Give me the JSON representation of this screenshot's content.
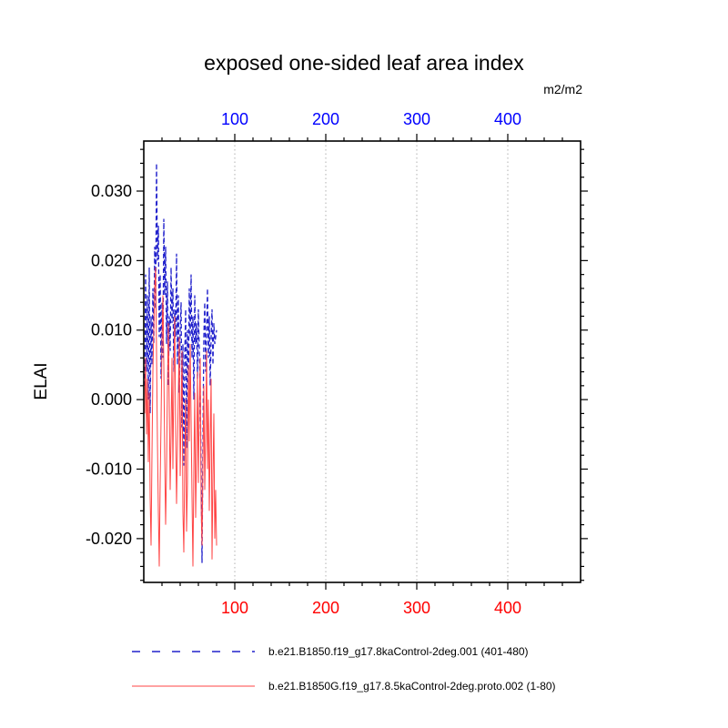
{
  "chart_data": {
    "type": "line",
    "title": "exposed one-sided leaf area index",
    "ylabel": "ELAI",
    "top_axis_unit": "m2/m2",
    "xlim": [
      0,
      480
    ],
    "ylim": [
      -0.0263,
      0.0372
    ],
    "x_major_ticks": [
      100,
      200,
      300,
      400
    ],
    "x_minor_step": 20,
    "y_major_ticks": [
      0.03,
      0.02,
      0.01,
      0.0,
      -0.01,
      -0.02
    ],
    "y_minor_step": 0.002,
    "grid": {
      "vertical_at": [
        100,
        200,
        300,
        400
      ],
      "color": "#b0b0b0"
    },
    "axis_colors": {
      "top": "#0000ff",
      "bottom": "#ff0000",
      "left": "#000000"
    },
    "x_start": 1,
    "x_step": 1,
    "series": [
      {
        "name": "b.e21.B1850.f19_g17.8kaControl-2deg.001 (401-480)",
        "color": "#2222cc",
        "style": "dashed",
        "values": [
          0.002,
          0.018,
          0.004,
          0.015,
          0.0,
          0.019,
          -0.002,
          0.012,
          0.005,
          0.016,
          0.008,
          0.022,
          0.013,
          0.034,
          0.02,
          0.025,
          0.009,
          0.018,
          0.003,
          0.014,
          0.006,
          0.026,
          0.015,
          0.022,
          0.008,
          0.017,
          0.002,
          0.012,
          0.007,
          0.019,
          0.011,
          0.016,
          0.004,
          0.013,
          0.009,
          0.021,
          0.005,
          0.015,
          0.001,
          0.01,
          0.014,
          -0.004,
          0.008,
          -0.0095,
          0.006,
          0.013,
          -0.007,
          0.01,
          0.002,
          0.016,
          0.009,
          0.018,
          0.006,
          0.012,
          0.0,
          0.015,
          0.008,
          0.011,
          0.003,
          0.013,
          0.007,
          0.001,
          -0.01,
          -0.0235,
          -0.006,
          0.009,
          0.014,
          0.004,
          0.01,
          0.016,
          0.006,
          0.012,
          0.002,
          0.009,
          0.013,
          0.005,
          0.011,
          0.008,
          0.009,
          0.01
        ]
      },
      {
        "name": "b.e21.B1850G.f19_g17.8.5kaControl-2deg.proto.002 (1-80)",
        "color": "#ff4444",
        "style": "solid",
        "values": [
          -0.002,
          0.006,
          -0.005,
          0.003,
          -0.009,
          0.001,
          -0.014,
          -0.021,
          -0.008,
          0.004,
          0.01,
          0.016,
          0.019,
          0.007,
          -0.006,
          -0.016,
          -0.024,
          -0.012,
          -0.003,
          0.008,
          0.015,
          0.005,
          -0.008,
          -0.018,
          -0.01,
          0.002,
          0.011,
          -0.001,
          -0.013,
          -0.005,
          0.006,
          -0.01,
          0.003,
          0.012,
          -0.004,
          -0.015,
          -0.007,
          0.001,
          0.009,
          -0.011,
          -0.002,
          0.007,
          -0.016,
          -0.022,
          -0.009,
          0.0,
          -0.019,
          -0.012,
          0.005,
          -0.006,
          0.008,
          -0.003,
          -0.014,
          -0.024,
          -0.01,
          0.001,
          -0.017,
          -0.008,
          0.004,
          -0.012,
          -0.001,
          0.006,
          -0.015,
          -0.021,
          -0.009,
          0.002,
          -0.013,
          -0.005,
          0.007,
          -0.01,
          0.0,
          -0.016,
          -0.006,
          0.003,
          -0.023,
          -0.011,
          -0.002,
          -0.02,
          -0.013,
          -0.021
        ]
      }
    ]
  },
  "legend": {
    "items": [
      {
        "label": "b.e21.B1850.f19_g17.8kaControl-2deg.001 (401-480)"
      },
      {
        "label": "b.e21.B1850G.f19_g17.8.5kaControl-2deg.proto.002 (1-80)"
      }
    ]
  }
}
